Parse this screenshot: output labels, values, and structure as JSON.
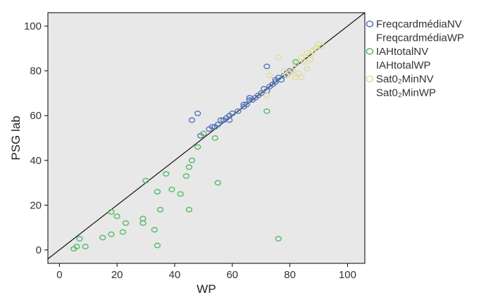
{
  "chart_data": {
    "type": "scatter",
    "xlabel": "WP",
    "ylabel": "PSG lab",
    "xlim": [
      -4,
      106
    ],
    "ylim": [
      -6,
      106
    ],
    "xticks": [
      0,
      20,
      40,
      60,
      80,
      100
    ],
    "yticks": [
      0,
      20,
      40,
      60,
      80,
      100
    ],
    "reference_line": "y = x",
    "plot_background": "#e8e8e8",
    "legend_placement": "right",
    "legend": [
      {
        "name": "FreqcardmédiaNV",
        "color": "#5577bb",
        "marker": "circle"
      },
      {
        "name": "FreqcardmédiaWP",
        "color": null,
        "marker": null
      },
      {
        "name": "IAHtotalNV",
        "color": "#55bb66",
        "marker": "circle"
      },
      {
        "name": "IAHtotalWP",
        "color": null,
        "marker": null
      },
      {
        "name": "Sat0₂MinNV",
        "color": "#e2dc9a",
        "marker": "circle"
      },
      {
        "name": "Sat0₂MinWP",
        "color": null,
        "marker": null
      }
    ],
    "series": [
      {
        "name": "FreqcardmédiaNV",
        "color": "#5577bb",
        "points": [
          [
            46,
            58
          ],
          [
            48,
            61
          ],
          [
            49,
            51
          ],
          [
            52,
            54
          ],
          [
            53,
            55
          ],
          [
            54,
            55
          ],
          [
            55,
            56
          ],
          [
            56,
            58
          ],
          [
            57,
            58
          ],
          [
            58,
            59
          ],
          [
            59,
            58
          ],
          [
            59,
            60
          ],
          [
            60,
            61
          ],
          [
            62,
            62
          ],
          [
            64,
            64
          ],
          [
            64,
            65
          ],
          [
            65,
            65
          ],
          [
            66,
            67
          ],
          [
            66,
            68
          ],
          [
            67,
            67
          ],
          [
            68,
            68
          ],
          [
            69,
            69
          ],
          [
            70,
            70
          ],
          [
            71,
            72
          ],
          [
            72,
            71
          ],
          [
            72,
            82
          ],
          [
            73,
            73
          ],
          [
            74,
            74
          ],
          [
            75,
            75
          ],
          [
            75,
            76
          ],
          [
            76,
            77
          ],
          [
            77,
            76
          ],
          [
            78,
            78
          ],
          [
            79,
            79
          ],
          [
            80,
            80
          ]
        ]
      },
      {
        "name": "IAHtotalNV",
        "color": "#55bb66",
        "points": [
          [
            5,
            0.5
          ],
          [
            6,
            1.5
          ],
          [
            7,
            5
          ],
          [
            9,
            1.5
          ],
          [
            15,
            5.5
          ],
          [
            18,
            7
          ],
          [
            18,
            17
          ],
          [
            20,
            15
          ],
          [
            22,
            8
          ],
          [
            23,
            12
          ],
          [
            29,
            14
          ],
          [
            29,
            12
          ],
          [
            30,
            31
          ],
          [
            33,
            9
          ],
          [
            34,
            2
          ],
          [
            34,
            26
          ],
          [
            35,
            18
          ],
          [
            37,
            34
          ],
          [
            39,
            27
          ],
          [
            42,
            25
          ],
          [
            44,
            33
          ],
          [
            45,
            18
          ],
          [
            45,
            37
          ],
          [
            46,
            40
          ],
          [
            48,
            46
          ],
          [
            50,
            52
          ],
          [
            54,
            50
          ],
          [
            55,
            30
          ],
          [
            72,
            62
          ],
          [
            76,
            5
          ],
          [
            82,
            84
          ]
        ]
      },
      {
        "name": "Sat0₂MinNV",
        "color": "#e2dc9a",
        "points": [
          [
            72,
            69
          ],
          [
            73,
            78
          ],
          [
            76,
            86
          ],
          [
            78,
            80
          ],
          [
            79,
            78
          ],
          [
            80,
            79
          ],
          [
            81,
            80
          ],
          [
            82,
            83
          ],
          [
            82,
            77
          ],
          [
            83,
            79
          ],
          [
            84,
            86
          ],
          [
            84,
            77
          ],
          [
            85,
            84
          ],
          [
            86,
            81
          ],
          [
            86,
            88
          ],
          [
            87,
            85
          ],
          [
            87,
            87
          ],
          [
            88,
            89
          ],
          [
            89,
            90
          ],
          [
            90,
            92
          ],
          [
            91,
            91
          ]
        ]
      }
    ]
  }
}
